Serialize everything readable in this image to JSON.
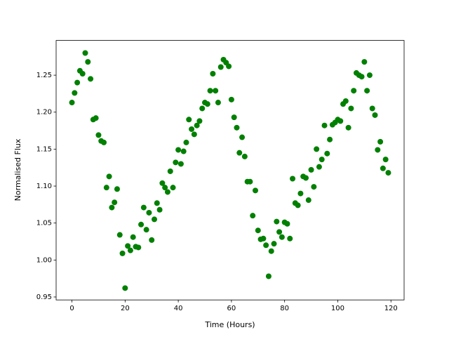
{
  "chart_data": {
    "type": "scatter",
    "xlabel": "Time (Hours)",
    "ylabel": "Normalised Flux",
    "series": [
      {
        "color": "#008000",
        "x": [
          0,
          1,
          2,
          3,
          4,
          5,
          6,
          7,
          8,
          9,
          10,
          11,
          12,
          13,
          14,
          15,
          16,
          17,
          18,
          19,
          20,
          21,
          22,
          23,
          24,
          25,
          26,
          27,
          28,
          29,
          30,
          31,
          32,
          33,
          34,
          35,
          36,
          37,
          38,
          39,
          40,
          41,
          42,
          43,
          44,
          45,
          46,
          47,
          48,
          49,
          50,
          51,
          52,
          53,
          54,
          55,
          56,
          57,
          58,
          59,
          60,
          61,
          62,
          63,
          64,
          65,
          66,
          67,
          68,
          69,
          70,
          71,
          72,
          73,
          74,
          75,
          76,
          77,
          78,
          79,
          80,
          81,
          82,
          83,
          84,
          85,
          86,
          87,
          88,
          89,
          90,
          91,
          92,
          93,
          94,
          95,
          96,
          97,
          98,
          99,
          100,
          101,
          102,
          103,
          104,
          105,
          106,
          107,
          108,
          109,
          110,
          111,
          112,
          113,
          114,
          115,
          116,
          117,
          118,
          119
        ],
        "values": [
          1.213,
          1.226,
          1.24,
          1.256,
          1.252,
          1.28,
          1.268,
          1.245,
          1.19,
          1.192,
          1.169,
          1.161,
          1.159,
          1.098,
          1.113,
          1.071,
          1.078,
          1.096,
          1.034,
          1.009,
          0.962,
          1.019,
          1.013,
          1.031,
          1.018,
          1.017,
          1.048,
          1.071,
          1.041,
          1.064,
          1.027,
          1.055,
          1.077,
          1.068,
          1.104,
          1.098,
          1.092,
          1.12,
          1.098,
          1.132,
          1.149,
          1.13,
          1.147,
          1.159,
          1.19,
          1.177,
          1.17,
          1.182,
          1.188,
          1.205,
          1.213,
          1.211,
          1.229,
          1.252,
          1.229,
          1.213,
          1.261,
          1.271,
          1.267,
          1.262,
          1.217,
          1.193,
          1.179,
          1.145,
          1.166,
          1.14,
          1.106,
          1.106,
          1.06,
          1.094,
          1.04,
          1.028,
          1.029,
          1.02,
          0.978,
          1.012,
          1.022,
          1.052,
          1.038,
          1.031,
          1.051,
          1.049,
          1.029,
          1.11,
          1.077,
          1.074,
          1.09,
          1.113,
          1.111,
          1.081,
          1.122,
          1.099,
          1.15,
          1.126,
          1.136,
          1.182,
          1.144,
          1.163,
          1.183,
          1.186,
          1.19,
          1.188,
          1.211,
          1.215,
          1.179,
          1.205,
          1.229,
          1.253,
          1.25,
          1.248,
          1.268,
          1.229,
          1.25,
          1.205,
          1.196,
          1.149,
          1.16,
          1.124,
          1.136,
          1.118
        ]
      }
    ],
    "xlim": [
      -5.95,
      124.95
    ],
    "ylim": [
      0.946,
      1.297
    ],
    "xticks": [
      0,
      20,
      40,
      60,
      80,
      100,
      120
    ],
    "yticks": [
      0.95,
      {
        "value": 1.0,
        "label": "1.00"
      },
      1.05,
      {
        "value": 1.1,
        "label": "1.10"
      },
      1.15,
      {
        "value": 1.2,
        "label": "1.20"
      },
      1.25
    ]
  }
}
